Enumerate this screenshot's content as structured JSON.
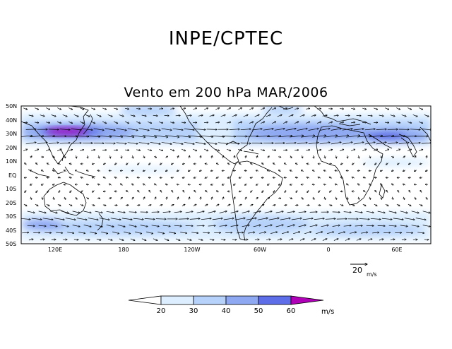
{
  "header": {
    "institution": "INPE/CPTEC"
  },
  "map": {
    "title": "Vento em 200 hPa MAR/2006",
    "lat_labels": [
      "50N",
      "40N",
      "30N",
      "20N",
      "10N",
      "EQ",
      "10S",
      "20S",
      "30S",
      "40S",
      "50S"
    ],
    "lon_labels": [
      "120E",
      "180",
      "120W",
      "60W",
      "0",
      "60E"
    ],
    "lon_range": [
      90,
      450
    ],
    "lat_range": [
      -50,
      50
    ]
  },
  "reference_vector": {
    "value": "20",
    "unit": "m/s"
  },
  "colorbar": {
    "ticks": [
      "20",
      "30",
      "40",
      "50",
      "60"
    ],
    "unit": "m/s",
    "colors": [
      "#ffffff",
      "#dceeff",
      "#b6d2fa",
      "#8ea8f2",
      "#5e6ee8",
      "#b000b8"
    ]
  },
  "colors": {
    "jet_core": "#b000b8",
    "land": "#000000"
  }
}
